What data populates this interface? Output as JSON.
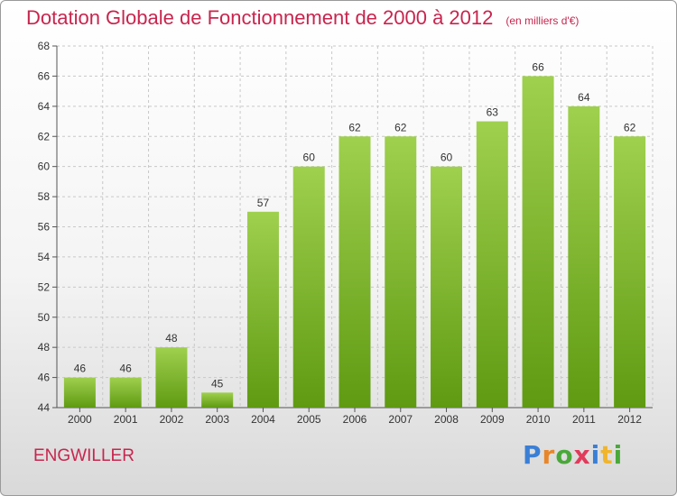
{
  "header": {
    "title": "Dotation Globale de Fonctionnement de 2000 à 2012",
    "subtitle": "(en milliers d'€)"
  },
  "footer": {
    "place": "ENGWILLER",
    "logo_letters": [
      "P",
      "r",
      "o",
      "x",
      "i",
      "t",
      "i"
    ]
  },
  "colors": {
    "bar_top": "#9fd04e",
    "bar_bottom": "#5f9a12",
    "title": "#c8254e",
    "grid": "#c8c8c8"
  },
  "chart_data": {
    "type": "bar",
    "title": "Dotation Globale de Fonctionnement de 2000 à 2012",
    "subtitle": "(en milliers d'€)",
    "xlabel": "",
    "ylabel": "",
    "categories": [
      "2000",
      "2001",
      "2002",
      "2003",
      "2004",
      "2005",
      "2006",
      "2007",
      "2008",
      "2009",
      "2010",
      "2011",
      "2012"
    ],
    "values": [
      46,
      46,
      48,
      45,
      57,
      60,
      62,
      62,
      60,
      63,
      66,
      64,
      62
    ],
    "ylim": [
      44,
      68
    ],
    "yticks": [
      44,
      46,
      48,
      50,
      52,
      54,
      56,
      58,
      60,
      62,
      64,
      66,
      68
    ],
    "grid": true
  }
}
